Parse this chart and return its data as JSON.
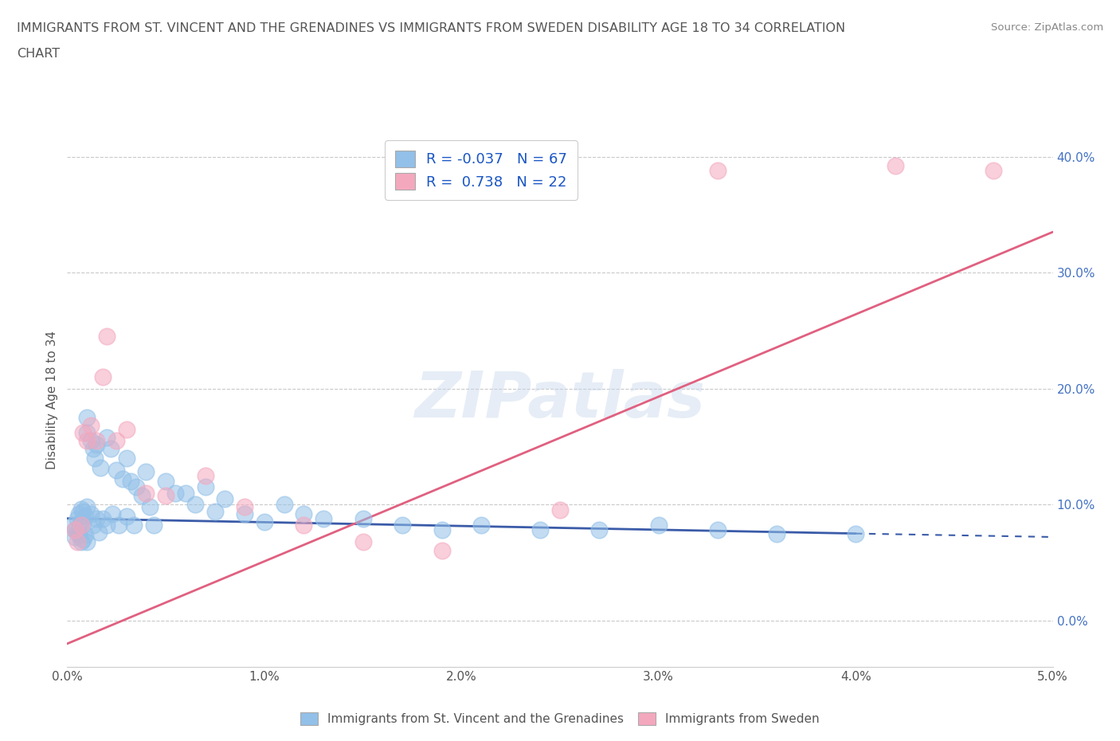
{
  "title_line1": "IMMIGRANTS FROM ST. VINCENT AND THE GRENADINES VS IMMIGRANTS FROM SWEDEN DISABILITY AGE 18 TO 34 CORRELATION",
  "title_line2": "CHART",
  "source_text": "Source: ZipAtlas.com",
  "ylabel": "Disability Age 18 to 34",
  "watermark": "ZIPatlas",
  "legend_label_blue": "Immigrants from St. Vincent and the Grenadines",
  "legend_label_pink": "Immigrants from Sweden",
  "R_blue": -0.037,
  "N_blue": 67,
  "R_pink": 0.738,
  "N_pink": 22,
  "blue_color": "#92C0E8",
  "pink_color": "#F4A8BE",
  "blue_line_color": "#3A5BA8",
  "pink_line_color": "#E06080",
  "xlim": [
    0.0,
    0.05
  ],
  "ylim": [
    -0.04,
    0.42
  ],
  "xtick_labels": [
    "0.0%",
    "1.0%",
    "2.0%",
    "3.0%",
    "4.0%",
    "5.0%"
  ],
  "xtick_vals": [
    0.0,
    0.01,
    0.02,
    0.03,
    0.04,
    0.05
  ],
  "ytick_vals": [
    0.0,
    0.1,
    0.2,
    0.3,
    0.4
  ],
  "ytick_labels": [
    "0.0%",
    "10.0%",
    "20.0%",
    "30.0%",
    "40.0%"
  ],
  "blue_x": [
    0.0003,
    0.0004,
    0.0004,
    0.0005,
    0.0005,
    0.0006,
    0.0006,
    0.0007,
    0.0007,
    0.0007,
    0.0008,
    0.0008,
    0.0008,
    0.0009,
    0.0009,
    0.001,
    0.001,
    0.001,
    0.001,
    0.0012,
    0.0012,
    0.0013,
    0.0013,
    0.0014,
    0.0015,
    0.0015,
    0.0016,
    0.0017,
    0.0018,
    0.002,
    0.002,
    0.0022,
    0.0023,
    0.0025,
    0.0026,
    0.0028,
    0.003,
    0.003,
    0.0032,
    0.0034,
    0.0035,
    0.0038,
    0.004,
    0.0042,
    0.0044,
    0.005,
    0.0055,
    0.006,
    0.0065,
    0.007,
    0.0075,
    0.008,
    0.009,
    0.01,
    0.011,
    0.012,
    0.013,
    0.015,
    0.017,
    0.019,
    0.021,
    0.024,
    0.027,
    0.03,
    0.033,
    0.036,
    0.04
  ],
  "blue_y": [
    0.082,
    0.078,
    0.072,
    0.088,
    0.076,
    0.092,
    0.074,
    0.096,
    0.086,
    0.068,
    0.094,
    0.082,
    0.07,
    0.09,
    0.074,
    0.175,
    0.162,
    0.098,
    0.068,
    0.155,
    0.092,
    0.148,
    0.082,
    0.14,
    0.152,
    0.088,
    0.076,
    0.132,
    0.088,
    0.158,
    0.082,
    0.148,
    0.092,
    0.13,
    0.082,
    0.122,
    0.14,
    0.09,
    0.12,
    0.082,
    0.115,
    0.108,
    0.128,
    0.098,
    0.082,
    0.12,
    0.11,
    0.11,
    0.1,
    0.115,
    0.094,
    0.105,
    0.092,
    0.085,
    0.1,
    0.092,
    0.088,
    0.088,
    0.082,
    0.078,
    0.082,
    0.078,
    0.078,
    0.082,
    0.078,
    0.075,
    0.075
  ],
  "pink_x": [
    0.0004,
    0.0005,
    0.0007,
    0.0008,
    0.001,
    0.0012,
    0.0015,
    0.0018,
    0.002,
    0.0025,
    0.003,
    0.004,
    0.005,
    0.007,
    0.009,
    0.012,
    0.015,
    0.019,
    0.025,
    0.033,
    0.042,
    0.047
  ],
  "pink_y": [
    0.078,
    0.068,
    0.082,
    0.162,
    0.155,
    0.168,
    0.155,
    0.21,
    0.245,
    0.155,
    0.165,
    0.11,
    0.108,
    0.125,
    0.098,
    0.082,
    0.068,
    0.06,
    0.095,
    0.388,
    0.392,
    0.388
  ],
  "blue_line_x": [
    0.0,
    0.04
  ],
  "blue_line_y": [
    0.088,
    0.075
  ],
  "pink_line_x": [
    0.0,
    0.05
  ],
  "pink_line_y": [
    -0.02,
    0.335
  ]
}
